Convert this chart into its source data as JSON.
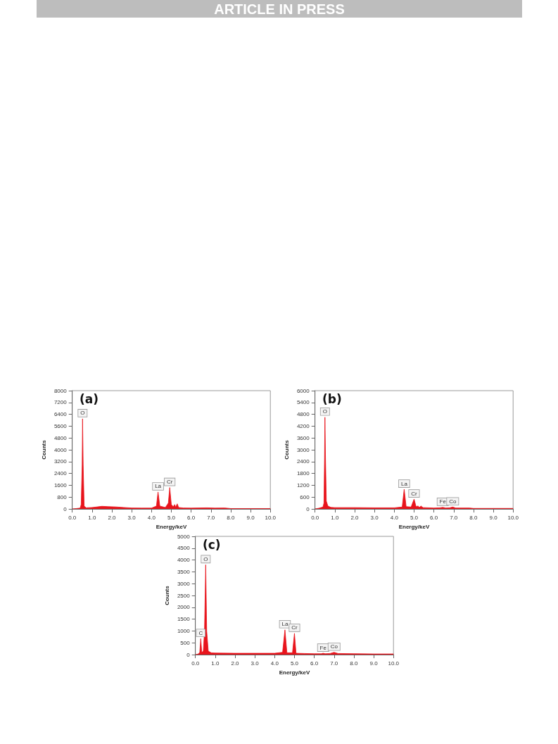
{
  "chart_data": [
    {
      "type": "area",
      "title": "(a)",
      "xlabel": "Energy/keV",
      "ylabel": "Counts",
      "annotations": [
        "ARTICLE IN PRESS",
        {
          "text": "O",
          "x": 0.52,
          "y": 6100
        },
        {
          "text": "La",
          "x": 4.33,
          "y": 1150
        },
        {
          "text": "Cr",
          "x": 4.92,
          "y": 1450
        }
      ],
      "x": [
        0,
        0.2,
        0.4,
        0.45,
        0.5,
        0.52,
        0.55,
        0.6,
        0.7,
        1.0,
        1.5,
        1.8,
        2.2,
        2.6,
        3.0,
        3.5,
        4.0,
        4.25,
        4.33,
        4.42,
        4.7,
        4.85,
        4.92,
        5.0,
        5.1,
        5.17,
        5.22,
        5.3,
        5.37,
        5.6,
        6.0,
        6.8,
        7.2,
        7.7,
        8.0,
        9.0,
        10.0
      ],
      "values": [
        0,
        30,
        60,
        300,
        3000,
        6100,
        3000,
        200,
        80,
        100,
        180,
        160,
        140,
        100,
        70,
        60,
        60,
        200,
        1150,
        200,
        100,
        400,
        1450,
        300,
        150,
        300,
        120,
        350,
        100,
        70,
        60,
        80,
        60,
        70,
        30,
        30,
        30
      ],
      "color": "#e8141c",
      "xlim": [
        0,
        10
      ],
      "xticks": [
        {
          "value": 0,
          "label": "0.0"
        },
        {
          "value": 1,
          "label": "1.0"
        },
        {
          "value": 2,
          "label": "2.0"
        },
        {
          "value": 3,
          "label": "3.0"
        },
        {
          "value": 4,
          "label": "4.0"
        },
        {
          "value": 5,
          "label": "5.0"
        },
        {
          "value": 6,
          "label": "6.0"
        },
        {
          "value": 7,
          "label": "7.0"
        },
        {
          "value": 8,
          "label": "8.0"
        },
        {
          "value": 9,
          "label": "9.0"
        },
        {
          "value": 10,
          "label": "10.0"
        }
      ],
      "ylim": [
        0,
        8000
      ],
      "yticks": [
        0,
        800,
        1600,
        2400,
        3200,
        4000,
        4800,
        5600,
        6400,
        7200,
        8000
      ]
    },
    {
      "type": "area",
      "title": "(b)",
      "xlabel": "Energy/keV",
      "ylabel": "Counts",
      "annotations": [
        {
          "text": "O",
          "x": 0.5,
          "y": 4650
        },
        {
          "text": "La",
          "x": 4.5,
          "y": 1000
        },
        {
          "text": "Cr",
          "x": 5.0,
          "y": 500
        },
        {
          "text": "Fe",
          "x": 6.45,
          "y": 80
        },
        {
          "text": "Co",
          "x": 6.95,
          "y": 100
        }
      ],
      "x": [
        0,
        0.2,
        0.4,
        0.45,
        0.48,
        0.5,
        0.53,
        0.57,
        0.65,
        0.8,
        1.0,
        2.0,
        3.0,
        4.0,
        4.4,
        4.5,
        4.6,
        4.85,
        5.0,
        5.1,
        5.2,
        5.27,
        5.35,
        5.45,
        6.0,
        6.3,
        6.45,
        6.6,
        6.8,
        6.95,
        7.1,
        7.8,
        8.0,
        9.0,
        10.0
      ],
      "values": [
        0,
        40,
        100,
        300,
        2500,
        4650,
        2500,
        400,
        150,
        80,
        70,
        70,
        60,
        60,
        100,
        1000,
        120,
        100,
        500,
        120,
        150,
        80,
        150,
        70,
        50,
        60,
        80,
        50,
        60,
        100,
        50,
        50,
        30,
        30,
        30
      ],
      "color": "#e8141c",
      "xlim": [
        0,
        10
      ],
      "xticks": [
        {
          "value": 0,
          "label": "0.0"
        },
        {
          "value": 1,
          "label": "1.0"
        },
        {
          "value": 2,
          "label": "2.0"
        },
        {
          "value": 3,
          "label": "3.0"
        },
        {
          "value": 4,
          "label": "4.0"
        },
        {
          "value": 5,
          "label": "5.0"
        },
        {
          "value": 6,
          "label": "6.0"
        },
        {
          "value": 7,
          "label": "7.0"
        },
        {
          "value": 8,
          "label": "8.0"
        },
        {
          "value": 9,
          "label": "9.0"
        },
        {
          "value": 10,
          "label": "10.0"
        }
      ],
      "ylim": [
        0,
        6000
      ],
      "yticks": [
        0,
        600,
        1200,
        1800,
        2400,
        3000,
        3600,
        4200,
        4800,
        5400,
        6000
      ]
    },
    {
      "type": "area",
      "title": "(c)",
      "xlabel": "Energy/keV",
      "ylabel": "Counts",
      "annotations": [
        {
          "text": "C",
          "x": 0.27,
          "y": 680
        },
        {
          "text": "O",
          "x": 0.52,
          "y": 3800
        },
        {
          "text": "La",
          "x": 4.52,
          "y": 1050
        },
        {
          "text": "Cr",
          "x": 5.0,
          "y": 900
        },
        {
          "text": "Fe",
          "x": 6.45,
          "y": 60
        },
        {
          "text": "Co",
          "x": 7.0,
          "y": 100
        }
      ],
      "x": [
        0,
        0.15,
        0.22,
        0.27,
        0.32,
        0.4,
        0.46,
        0.52,
        0.57,
        0.65,
        0.8,
        1.0,
        2.0,
        3.0,
        4.0,
        4.4,
        4.52,
        4.62,
        4.9,
        5.0,
        5.08,
        5.5,
        6.0,
        6.35,
        6.45,
        6.55,
        6.8,
        7.0,
        7.2,
        8.0,
        9.0,
        10.0
      ],
      "values": [
        0,
        30,
        100,
        680,
        100,
        150,
        1000,
        3800,
        1000,
        150,
        80,
        70,
        60,
        60,
        60,
        100,
        1050,
        80,
        80,
        900,
        60,
        50,
        40,
        40,
        60,
        40,
        50,
        100,
        50,
        40,
        30,
        30
      ],
      "color": "#e8141c",
      "xlim": [
        0,
        10
      ],
      "xticks": [
        {
          "value": 0,
          "label": "0.0"
        },
        {
          "value": 1,
          "label": "1.0"
        },
        {
          "value": 2,
          "label": "2.0"
        },
        {
          "value": 3,
          "label": "3.0"
        },
        {
          "value": 4,
          "label": "4.0"
        },
        {
          "value": 5,
          "label": "5.0"
        },
        {
          "value": 6,
          "label": "6.0"
        },
        {
          "value": 7,
          "label": "7.0"
        },
        {
          "value": 8,
          "label": "8.0"
        },
        {
          "value": 9,
          "label": "9.0"
        },
        {
          "value": 10,
          "label": "10.0"
        }
      ],
      "ylim": [
        0,
        5000
      ],
      "yticks": [
        0,
        500,
        1000,
        1500,
        2000,
        2500,
        3000,
        3500,
        4000,
        4500,
        5000
      ]
    }
  ]
}
